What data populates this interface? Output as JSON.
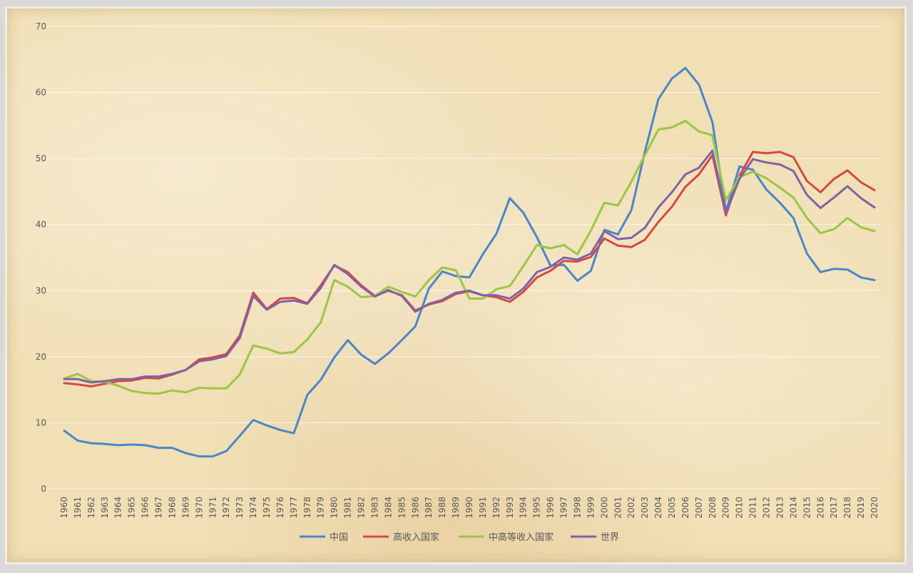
{
  "chart_data": {
    "type": "line",
    "title": "",
    "xlabel": "",
    "ylabel": "",
    "ylim": [
      0,
      70
    ],
    "yticks": [
      0,
      10,
      20,
      30,
      40,
      50,
      60,
      70
    ],
    "grid": true,
    "legend_position": "bottom",
    "categories": [
      "1960",
      "1961",
      "1962",
      "1963",
      "1964",
      "1965",
      "1966",
      "1967",
      "1968",
      "1969",
      "1970",
      "1971",
      "1972",
      "1973",
      "1974",
      "1975",
      "1976",
      "1977",
      "1978",
      "1979",
      "1980",
      "1981",
      "1982",
      "1983",
      "1984",
      "1985",
      "1986",
      "1987",
      "1988",
      "1989",
      "1990",
      "1991",
      "1992",
      "1993",
      "1994",
      "1995",
      "1996",
      "1997",
      "1998",
      "1999",
      "2000",
      "2001",
      "2002",
      "2003",
      "2004",
      "2005",
      "2006",
      "2007",
      "2008",
      "2009",
      "2010",
      "2011",
      "2012",
      "2013",
      "2014",
      "2015",
      "2016",
      "2017",
      "2018",
      "2019",
      "2020"
    ],
    "series": [
      {
        "name": "中国",
        "color": "#4a86c8",
        "values": [
          8.8,
          7.3,
          6.9,
          6.8,
          6.6,
          6.7,
          6.6,
          6.2,
          6.2,
          5.4,
          4.9,
          4.9,
          5.7,
          8.0,
          10.4,
          9.6,
          8.9,
          8.4,
          14.2,
          16.5,
          19.9,
          22.5,
          20.3,
          18.9,
          20.5,
          22.5,
          24.6,
          30.3,
          32.9,
          32.2,
          32.0,
          35.5,
          38.6,
          44.0,
          41.8,
          38.1,
          33.8,
          33.9,
          31.5,
          33.0,
          39.2,
          38.5,
          42.2,
          51.0,
          59.0,
          62.1,
          63.7,
          61.2,
          55.5,
          42.0,
          48.8,
          48.3,
          45.3,
          43.3,
          41.0,
          35.6,
          32.8,
          33.3,
          33.2,
          32.0,
          31.6
        ]
      },
      {
        "name": "高收入国家",
        "color": "#d24a45",
        "values": [
          16.0,
          15.8,
          15.5,
          15.9,
          16.3,
          16.4,
          16.8,
          16.7,
          17.3,
          18.0,
          19.6,
          19.9,
          20.4,
          23.2,
          29.7,
          27.2,
          28.8,
          28.9,
          28.1,
          30.8,
          33.8,
          32.8,
          30.8,
          29.2,
          30.0,
          29.3,
          27.0,
          27.9,
          28.4,
          29.5,
          29.9,
          29.3,
          29.0,
          28.3,
          29.8,
          32.0,
          33.0,
          34.5,
          34.4,
          35.1,
          37.9,
          36.8,
          36.6,
          37.7,
          40.4,
          42.7,
          45.7,
          47.6,
          50.5,
          41.4,
          47.4,
          51.0,
          50.8,
          51.0,
          50.2,
          46.6,
          44.9,
          46.9,
          48.2,
          46.4,
          45.2
        ]
      },
      {
        "name": "中高等收入国家",
        "color": "#9cc545",
        "values": [
          16.7,
          17.4,
          16.3,
          16.2,
          15.6,
          14.8,
          14.5,
          14.4,
          14.9,
          14.6,
          15.3,
          15.2,
          15.2,
          17.3,
          21.7,
          21.2,
          20.5,
          20.7,
          22.6,
          25.2,
          31.6,
          30.6,
          29.0,
          29.2,
          30.6,
          29.8,
          29.1,
          31.6,
          33.5,
          33.1,
          28.8,
          28.8,
          30.2,
          30.7,
          33.7,
          36.9,
          36.4,
          36.9,
          35.5,
          39.1,
          43.3,
          42.9,
          46.5,
          50.5,
          54.4,
          54.7,
          55.7,
          54.1,
          53.5,
          43.7,
          47.2,
          48.0,
          47.0,
          45.6,
          44.1,
          41.0,
          38.7,
          39.3,
          41.0,
          39.6,
          39.0
        ]
      },
      {
        "name": "世界",
        "color": "#8062a6",
        "values": [
          16.6,
          16.6,
          16.1,
          16.3,
          16.6,
          16.6,
          17.0,
          17.0,
          17.4,
          18.0,
          19.3,
          19.6,
          20.1,
          22.8,
          29.2,
          27.1,
          28.3,
          28.5,
          28.0,
          30.4,
          33.9,
          32.5,
          30.6,
          29.1,
          30.1,
          29.2,
          26.8,
          28.0,
          28.6,
          29.7,
          30.0,
          29.3,
          29.3,
          28.8,
          30.3,
          32.8,
          33.6,
          35.0,
          34.7,
          35.6,
          39.0,
          37.8,
          38.0,
          39.5,
          42.6,
          44.9,
          47.6,
          48.6,
          51.2,
          41.8,
          46.9,
          49.9,
          49.4,
          49.1,
          48.1,
          44.5,
          42.5,
          44.1,
          45.8,
          44.0,
          42.6
        ]
      }
    ]
  }
}
